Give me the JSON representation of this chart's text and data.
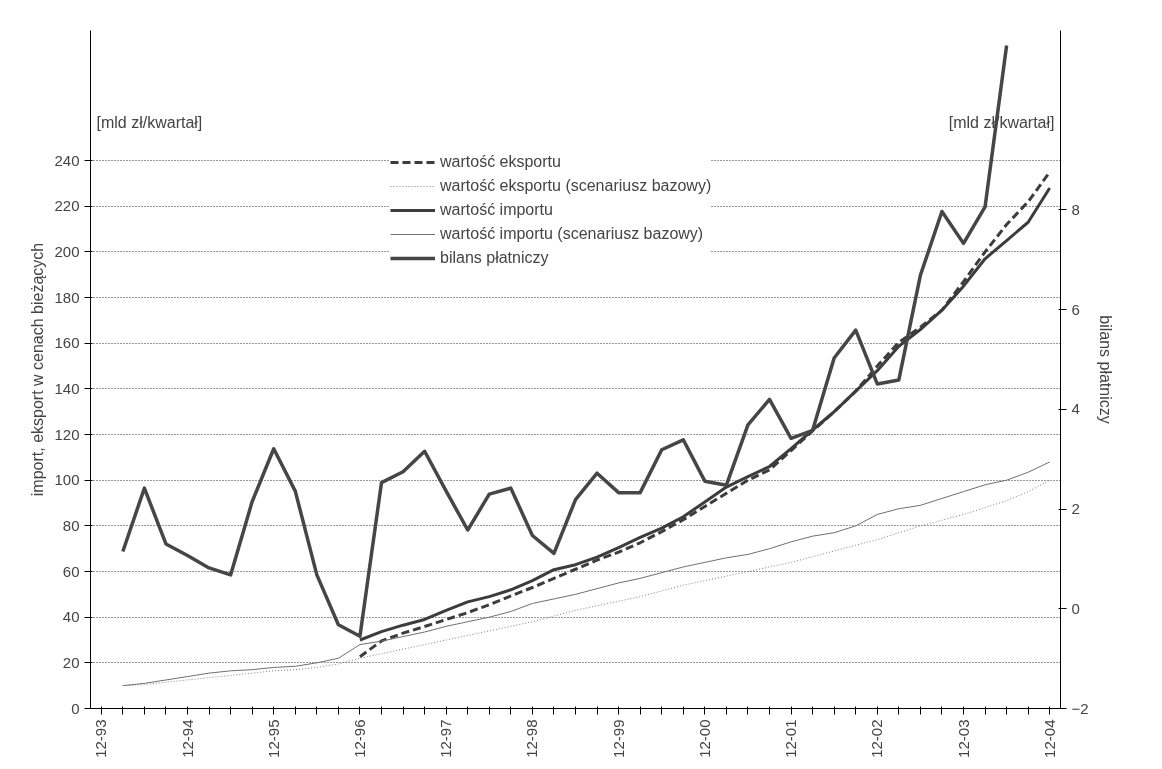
{
  "chart_data": {
    "type": "line",
    "categories": [
      "12-93",
      null,
      null,
      null,
      "12-94",
      null,
      null,
      null,
      "12-95",
      null,
      null,
      null,
      "12-96",
      null,
      null,
      null,
      "12-97",
      null,
      null,
      null,
      "12-98",
      null,
      null,
      null,
      "12-99",
      null,
      null,
      null,
      "12-00",
      null,
      null,
      null,
      "12-01",
      null,
      null,
      null,
      "12-02",
      null,
      null,
      null,
      "12-03",
      null,
      null,
      null,
      "12-04"
    ],
    "ylabel": "import, eksport w cenach bieżących",
    "y2label": "bilans płatniczy",
    "annotations": [
      "[mld zł/kwartał]",
      "[mld zł/kwartał]"
    ],
    "ylim": [
      0,
      297
    ],
    "yticks": [
      0,
      20,
      40,
      60,
      80,
      100,
      120,
      140,
      160,
      180,
      200,
      220,
      240
    ],
    "y2lim": [
      -2,
      11.6
    ],
    "y2ticks": [
      -2,
      0,
      2,
      4,
      6,
      8
    ],
    "grid": "y",
    "legend": "top",
    "series": [
      {
        "name": "wartość eksportu",
        "color": "#3c3c3c",
        "line_style": "dashed",
        "values": [
          null,
          null,
          null,
          null,
          null,
          null,
          null,
          null,
          null,
          null,
          null,
          null,
          22.7,
          29.6,
          33,
          35.9,
          39,
          42,
          45.5,
          49.3,
          53,
          57,
          61,
          65,
          68.5,
          72.6,
          77.5,
          82.7,
          88.5,
          94.3,
          100,
          104.5,
          113,
          121.6,
          130,
          139,
          150,
          160.4,
          167,
          174.5,
          187,
          200,
          212,
          222,
          235
        ]
      },
      {
        "name": "wartość eksportu (scenariusz bazowy)",
        "color": "#808080",
        "line_style": "dotted",
        "values": [
          null,
          10,
          10.5,
          11.5,
          12.5,
          13.5,
          14.5,
          15.5,
          16.5,
          17,
          18,
          19.5,
          22,
          24,
          26,
          28,
          30,
          32,
          34,
          36,
          38,
          40.5,
          43,
          45,
          47,
          49,
          51.5,
          54,
          56,
          58,
          60,
          62,
          64,
          66.5,
          69,
          71.5,
          74,
          77,
          80,
          82.5,
          85,
          88,
          91,
          95,
          100
        ]
      },
      {
        "name": "wartość importu",
        "color": "#3c3c3c",
        "line_style": "solid",
        "values": [
          null,
          null,
          null,
          null,
          null,
          null,
          null,
          null,
          null,
          null,
          null,
          null,
          30,
          33.7,
          36.5,
          39,
          43,
          46.7,
          49,
          52,
          56,
          60.8,
          63,
          66.3,
          70.5,
          75,
          79,
          84,
          90.5,
          97,
          101.6,
          106,
          113.8,
          122,
          130,
          139,
          148,
          158.7,
          166,
          174.5,
          185,
          197,
          205,
          213,
          228
        ]
      },
      {
        "name": "wartość importu (scenariusz bazowy)",
        "color": "#707070",
        "line_style": "solid",
        "values": [
          null,
          10,
          11,
          12.5,
          14,
          15.5,
          16.5,
          17,
          18,
          18.5,
          20,
          22,
          28,
          29.5,
          31.5,
          33.5,
          36,
          38,
          40,
          42.5,
          46,
          48,
          50,
          52.5,
          55,
          57,
          59.5,
          62,
          64,
          66,
          67.5,
          70,
          73,
          75.5,
          77,
          80,
          85,
          87.5,
          89,
          92,
          95,
          98,
          100,
          103.5,
          108
        ]
      },
      {
        "name": "bilans płatniczy",
        "color": "#464646",
        "line_style": "solid",
        "axis": "y2",
        "values": [
          null,
          1.15,
          2.42,
          1.3,
          1.07,
          0.82,
          0.68,
          2.15,
          3.21,
          2.36,
          0.68,
          -0.32,
          -0.55,
          2.53,
          2.75,
          3.16,
          2.36,
          1.58,
          2.3,
          2.42,
          1.47,
          1.11,
          2.19,
          2.72,
          2.33,
          2.33,
          3.19,
          3.39,
          2.56,
          2.48,
          3.69,
          4.2,
          3.42,
          3.58,
          5.03,
          5.59,
          4.51,
          4.59,
          6.69,
          7.97,
          7.33,
          8.06,
          11.3,
          null,
          null
        ]
      }
    ]
  }
}
